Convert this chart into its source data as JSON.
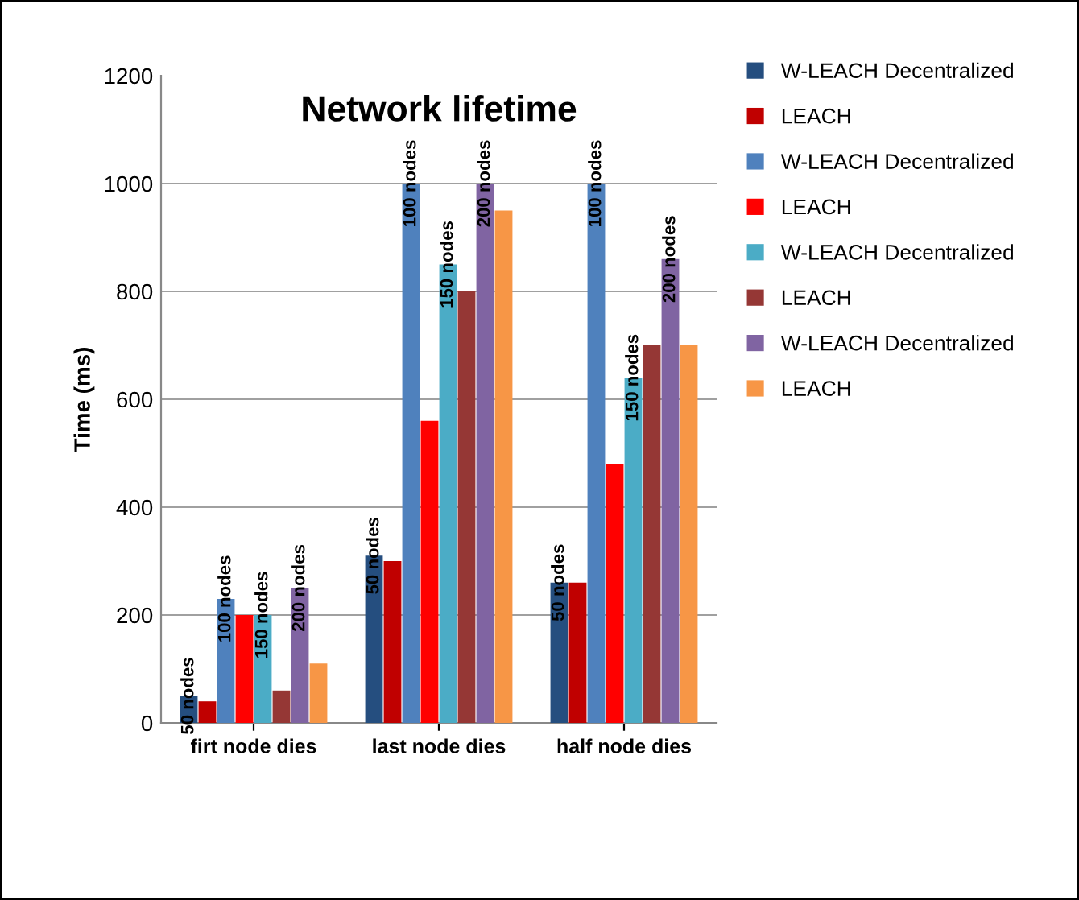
{
  "chart_data": {
    "type": "bar",
    "title": "Network lifetime",
    "ylabel": "Time (ms)",
    "categories": [
      "firt node dies",
      "last node dies",
      "half node dies"
    ],
    "series": [
      {
        "name": "W-LEACH Decentralized",
        "color": "#254e7f",
        "values": [
          50,
          310,
          260
        ]
      },
      {
        "name": "LEACH",
        "color": "#c00000",
        "values": [
          40,
          300,
          260
        ]
      },
      {
        "name": "W-LEACH Decentralized",
        "color": "#4f81bd",
        "values": [
          230,
          1000,
          1000
        ]
      },
      {
        "name": "LEACH",
        "color": "#ff0000",
        "values": [
          200,
          560,
          480
        ]
      },
      {
        "name": "W-LEACH Decentralized",
        "color": "#4bacc6",
        "values": [
          200,
          850,
          640
        ]
      },
      {
        "name": "LEACH",
        "color": "#953735",
        "values": [
          60,
          800,
          700
        ]
      },
      {
        "name": "W-LEACH Decentralized",
        "color": "#8064a2",
        "values": [
          250,
          1000,
          860
        ]
      },
      {
        "name": "LEACH",
        "color": "#f79646",
        "values": [
          110,
          950,
          700
        ]
      }
    ],
    "annotations": [
      "50 nodes",
      "100 nodes",
      "150 nodes",
      "200 nodes",
      "50 nodes",
      "100 nodes",
      "150 nodes",
      "200 nodes",
      "50 nodes",
      "100 nodes",
      "150 nodes",
      "200 nodes"
    ],
    "ylim": [
      0,
      1200
    ],
    "yticks": [
      0,
      200,
      400,
      600,
      800,
      1000,
      1200
    ],
    "grid": "y",
    "legend": "right"
  }
}
